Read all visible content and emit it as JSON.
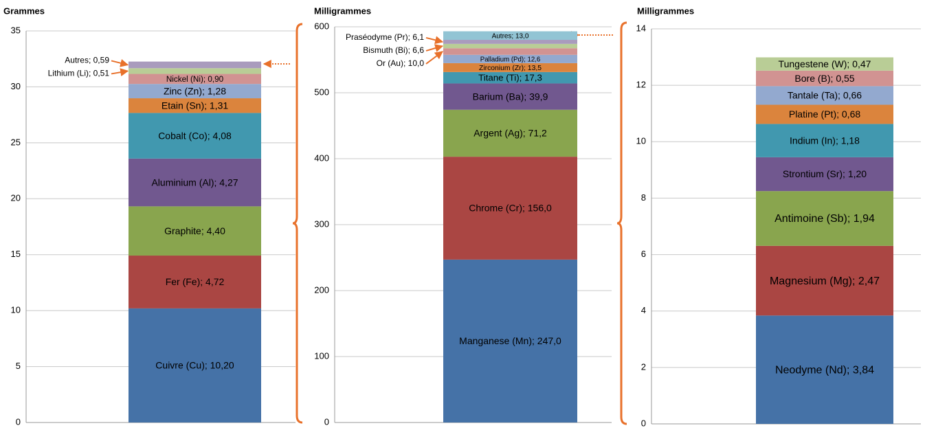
{
  "chart_data": [
    {
      "type": "stacked_bar",
      "y_label": "Grammes",
      "categories": [
        null
      ],
      "ylim": [
        0,
        35
      ],
      "yticks": [
        0,
        5,
        10,
        15,
        20,
        25,
        30,
        35
      ],
      "grid": true,
      "series": [
        {
          "color": "#4572a7",
          "values": [
            10.2
          ],
          "value_labels": [
            "Cuivre (Cu); 10,20"
          ]
        },
        {
          "color": "#aa4643",
          "values": [
            4.72
          ],
          "value_labels": [
            "Fer (Fe); 4,72"
          ]
        },
        {
          "color": "#89a54e",
          "values": [
            4.4
          ],
          "value_labels": [
            "Graphite; 4,40"
          ]
        },
        {
          "color": "#71588f",
          "values": [
            4.27
          ],
          "value_labels": [
            "Aluminium (Al); 4,27"
          ]
        },
        {
          "color": "#4198af",
          "values": [
            4.08
          ],
          "value_labels": [
            "Cobalt (Co); 4,08"
          ]
        },
        {
          "color": "#db843d",
          "values": [
            1.31
          ],
          "value_labels": [
            "Etain (Sn); 1,31"
          ]
        },
        {
          "color": "#93a9cf",
          "values": [
            1.28
          ],
          "value_labels": [
            "Zinc (Zn); 1,28"
          ]
        },
        {
          "color": "#d19392",
          "values": [
            0.9
          ],
          "value_labels": [
            "Nickel (Ni); 0,90"
          ]
        },
        {
          "color": "#b9cd96",
          "values": [
            0.51
          ],
          "value_labels": [
            "Lithium (Li); 0,51"
          ]
        },
        {
          "color": "#a99bbd",
          "values": [
            0.59
          ],
          "value_labels": [
            "Autres; 0,59"
          ]
        }
      ]
    },
    {
      "type": "stacked_bar",
      "y_label": "Milligrammes",
      "categories": [
        null
      ],
      "ylim": [
        0,
        600
      ],
      "yticks": [
        0,
        100,
        200,
        300,
        400,
        500,
        600
      ],
      "grid": true,
      "series": [
        {
          "color": "#4572a7",
          "values": [
            247.0
          ],
          "value_labels": [
            "Manganese (Mn); 247,0"
          ]
        },
        {
          "color": "#aa4643",
          "values": [
            156.0
          ],
          "value_labels": [
            "Chrome (Cr); 156,0"
          ]
        },
        {
          "color": "#89a54e",
          "values": [
            71.2
          ],
          "value_labels": [
            "Argent (Ag); 71,2"
          ]
        },
        {
          "color": "#71588f",
          "values": [
            39.9
          ],
          "value_labels": [
            "Barium (Ba); 39,9"
          ]
        },
        {
          "color": "#4198af",
          "values": [
            17.3
          ],
          "value_labels": [
            "Titane (Ti); 17,3"
          ]
        },
        {
          "color": "#db843d",
          "values": [
            13.5
          ],
          "value_labels": [
            "Zirconium (Zr); 13,5"
          ]
        },
        {
          "color": "#93a9cf",
          "values": [
            12.6
          ],
          "value_labels": [
            "Palladium (Pd); 12,6"
          ]
        },
        {
          "color": "#d19392",
          "values": [
            10.0
          ],
          "value_labels": [
            "Or (Au); 10,0"
          ]
        },
        {
          "color": "#b9cd96",
          "values": [
            6.6
          ],
          "value_labels": [
            "Bismuth (Bi); 6,6"
          ]
        },
        {
          "color": "#a99bbd",
          "values": [
            6.1
          ],
          "value_labels": [
            "Praséodyme (Pr); 6,1"
          ]
        },
        {
          "color": "#92c4d4",
          "values": [
            13.0
          ],
          "value_labels": [
            "Autres; 13,0"
          ]
        }
      ]
    },
    {
      "type": "stacked_bar",
      "y_label": "Milligrammes",
      "categories": [
        null
      ],
      "ylim": [
        0,
        14
      ],
      "yticks": [
        0,
        2,
        4,
        6,
        8,
        10,
        12,
        14
      ],
      "grid": true,
      "series": [
        {
          "color": "#4572a7",
          "values": [
            3.84
          ],
          "value_labels": [
            "Neodyme (Nd); 3,84"
          ]
        },
        {
          "color": "#aa4643",
          "values": [
            2.47
          ],
          "value_labels": [
            "Magnesium (Mg); 2,47"
          ]
        },
        {
          "color": "#89a54e",
          "values": [
            1.94
          ],
          "value_labels": [
            "Antimoine (Sb); 1,94"
          ]
        },
        {
          "color": "#71588f",
          "values": [
            1.2
          ],
          "value_labels": [
            "Strontium (Sr); 1,20"
          ]
        },
        {
          "color": "#4198af",
          "values": [
            1.18
          ],
          "value_labels": [
            "Indium (In); 1,18"
          ]
        },
        {
          "color": "#db843d",
          "values": [
            0.68
          ],
          "value_labels": [
            "Platine (Pt); 0,68"
          ]
        },
        {
          "color": "#93a9cf",
          "values": [
            0.66
          ],
          "value_labels": [
            "Tantale (Ta); 0,66"
          ]
        },
        {
          "color": "#d19392",
          "values": [
            0.55
          ],
          "value_labels": [
            "Bore (B); 0,55"
          ]
        },
        {
          "color": "#b9cd96",
          "values": [
            0.47
          ],
          "value_labels": [
            "Tungestene (W); 0,47"
          ]
        }
      ]
    }
  ]
}
